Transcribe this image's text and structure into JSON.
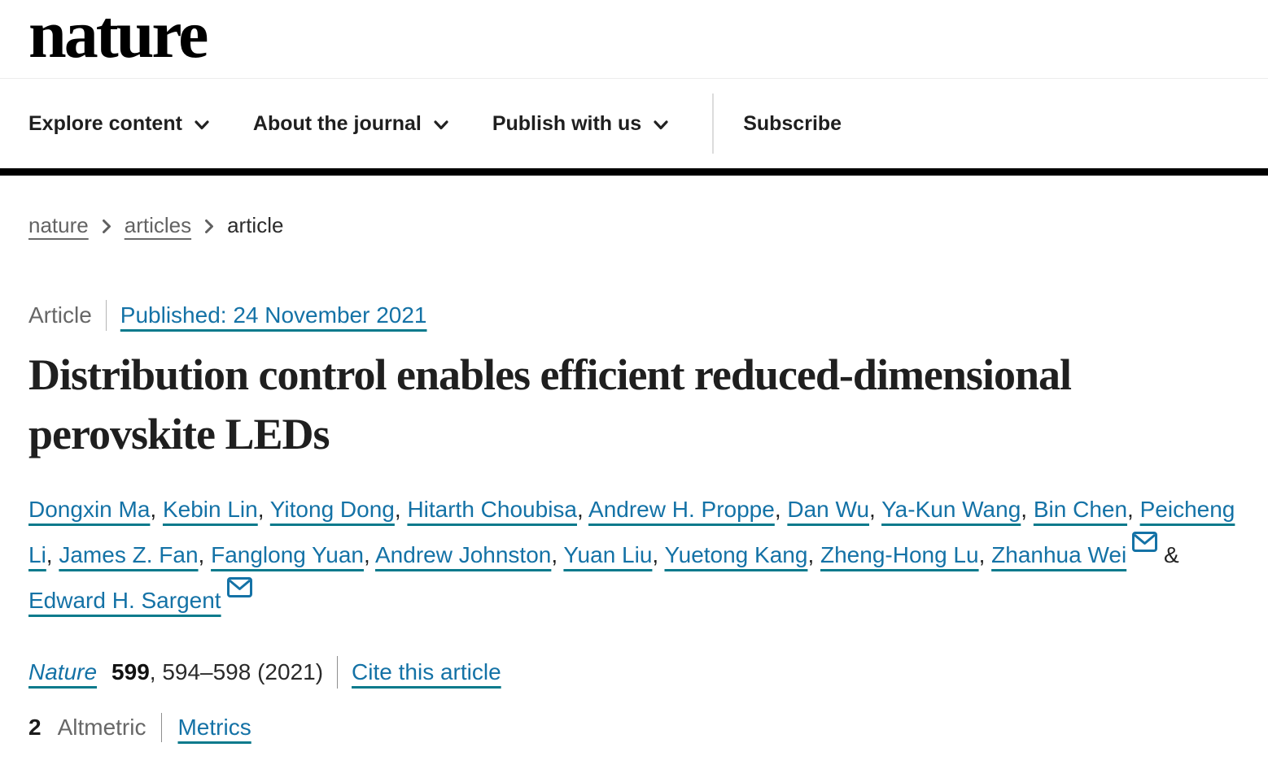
{
  "header": {
    "logo_text": "nature"
  },
  "nav": {
    "items": [
      {
        "label": "Explore content"
      },
      {
        "label": "About the journal"
      },
      {
        "label": "Publish with us"
      }
    ],
    "subscribe": "Subscribe"
  },
  "breadcrumb": {
    "items": [
      {
        "label": "nature",
        "link": true
      },
      {
        "label": "articles",
        "link": true
      },
      {
        "label": "article",
        "link": false
      }
    ]
  },
  "meta": {
    "type": "Article",
    "published": "Published: 24 November 2021"
  },
  "title": "Distribution control enables efficient reduced-dimensional perovskite LEDs",
  "authors": [
    {
      "name": "Dongxin Ma"
    },
    {
      "name": "Kebin Lin"
    },
    {
      "name": "Yitong Dong"
    },
    {
      "name": "Hitarth Choubisa"
    },
    {
      "name": "Andrew H. Proppe"
    },
    {
      "name": "Dan Wu"
    },
    {
      "name": "Ya-Kun Wang"
    },
    {
      "name": "Bin Chen"
    },
    {
      "name": "Peicheng Li"
    },
    {
      "name": "James Z. Fan"
    },
    {
      "name": "Fanglong Yuan"
    },
    {
      "name": "Andrew Johnston"
    },
    {
      "name": "Yuan Liu"
    },
    {
      "name": "Yuetong Kang"
    },
    {
      "name": "Zheng-Hong Lu"
    },
    {
      "name": "Zhanhua Wei",
      "email": true
    },
    {
      "name": "Edward H. Sargent",
      "email": true
    }
  ],
  "citation": {
    "journal": "Nature",
    "volume": "599",
    "pages_year": ", 594–598 (2021)",
    "cite_link": "Cite this article"
  },
  "metrics": {
    "altmetric_count": "2",
    "altmetric_label": "Altmetric",
    "metrics_link": "Metrics"
  },
  "icons": {
    "nav_dropdown": "chevron-down-icon",
    "breadcrumb_separator": "chevron-right-icon",
    "corresponding_author": "email-icon"
  },
  "colors": {
    "link_blue": "#1472a6",
    "link_underline": "#0a7a8c",
    "text_dark": "#222222",
    "text_gray": "#676767",
    "top_bar": "#000000"
  }
}
